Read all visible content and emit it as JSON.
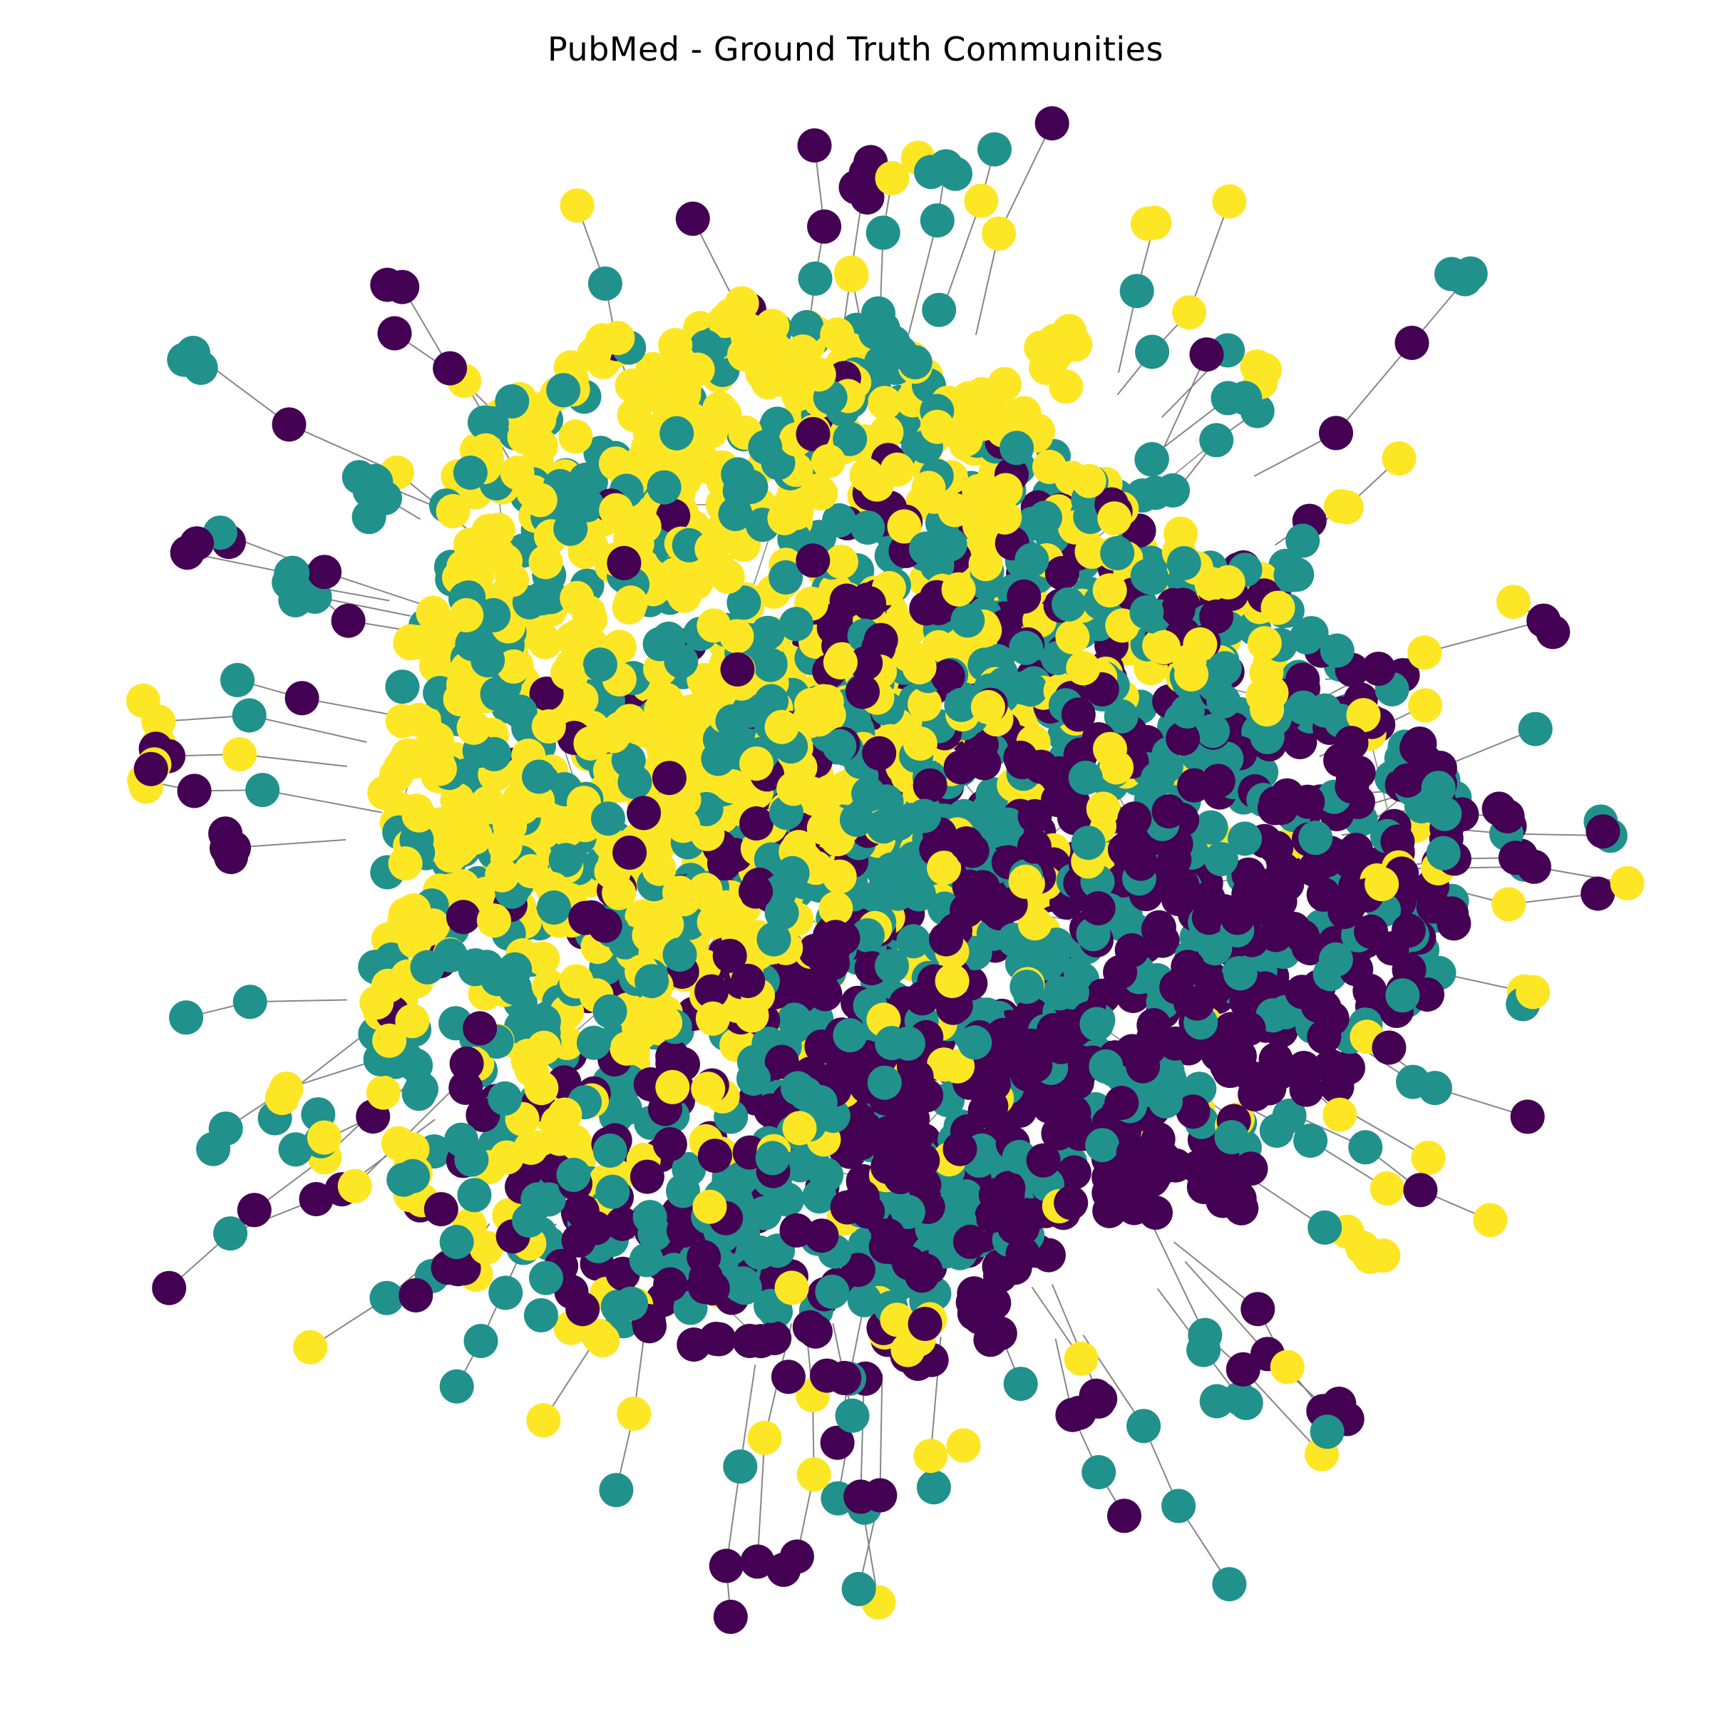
{
  "figure": {
    "title": "PubMed - Ground Truth Communities"
  },
  "graph": {
    "layout": "force-directed network",
    "node_count_approx": 2200,
    "communities": [
      {
        "id": 0,
        "color": "#440154"
      },
      {
        "id": 1,
        "color": "#21918c"
      },
      {
        "id": 2,
        "color": "#fde725"
      }
    ],
    "edge_color": "#808080",
    "background": "#ffffff",
    "axes_visible": false
  }
}
